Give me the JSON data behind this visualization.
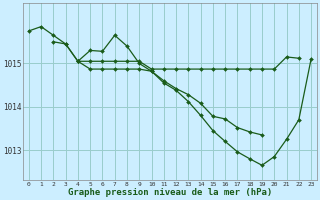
{
  "bg_color": "#cceeff",
  "grid_color": "#99cccc",
  "line_color": "#1a5c1a",
  "xlabel": "Graphe pression niveau de la mer (hPa)",
  "xlabel_fontsize": 6.5,
  "xticks": [
    0,
    1,
    2,
    3,
    4,
    5,
    6,
    7,
    8,
    9,
    10,
    11,
    12,
    13,
    14,
    15,
    16,
    17,
    18,
    19,
    20,
    21,
    22,
    23
  ],
  "yticks": [
    1013,
    1014,
    1015
  ],
  "ylim": [
    1012.3,
    1016.4
  ],
  "xlim": [
    -0.5,
    23.5
  ],
  "line1": [
    1015.75,
    1015.85,
    1015.65,
    1015.45,
    1015.05,
    1015.05,
    1015.05,
    1015.05,
    1015.05,
    1015.05,
    1014.87,
    1014.87,
    1014.87,
    1014.87,
    1014.87,
    1014.87,
    1014.87,
    1014.87,
    1014.87,
    1014.87,
    1014.87,
    1015.15,
    1015.12,
    null
  ],
  "line2": [
    null,
    null,
    1015.5,
    1015.45,
    1015.05,
    1015.3,
    1015.28,
    1015.65,
    1015.4,
    1015.0,
    1014.82,
    1014.6,
    1014.42,
    1014.28,
    1014.08,
    1013.78,
    1013.72,
    1013.52,
    1013.42,
    1013.35,
    null,
    null,
    null,
    null
  ],
  "line3": [
    null,
    null,
    null,
    null,
    1015.05,
    1014.87,
    1014.87,
    1014.87,
    1014.87,
    1014.87,
    1014.82,
    1014.55,
    1014.38,
    1014.12,
    1013.8,
    1013.45,
    1013.2,
    1012.96,
    1012.8,
    1012.65,
    1012.85,
    1013.25,
    1013.7,
    1015.1
  ]
}
